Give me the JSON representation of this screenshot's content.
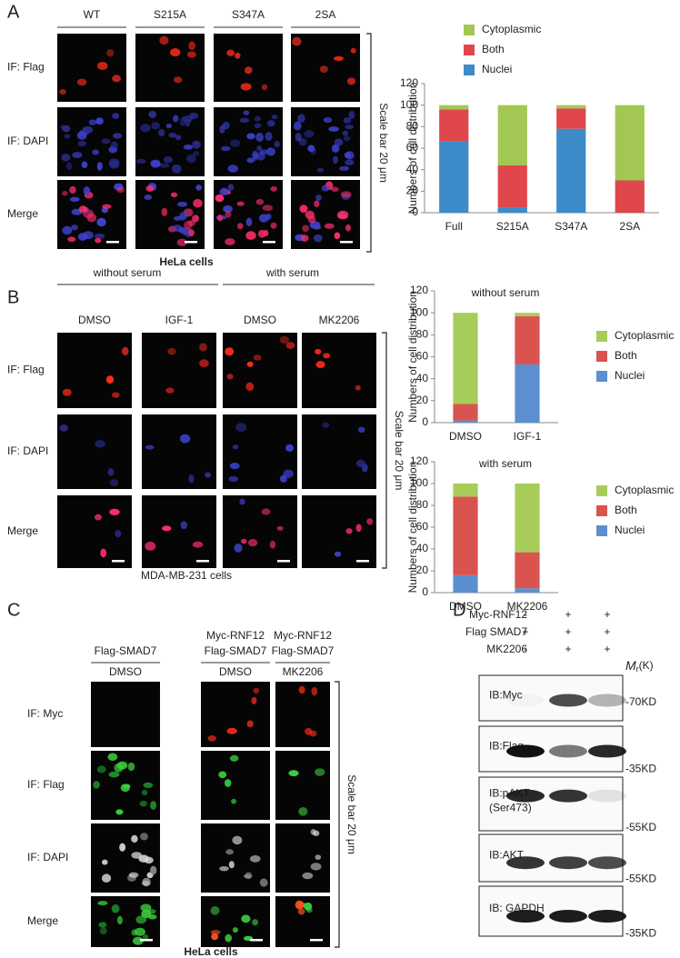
{
  "panels": {
    "A": {
      "label": "A",
      "columns": [
        "WT",
        "S215A",
        "S347A",
        "2SA"
      ],
      "rows": [
        "IF: Flag",
        "IF: DAPI",
        "Merge"
      ],
      "scale_bar": "Scale bar 20 μm",
      "cell_line": "HeLa cells"
    },
    "B": {
      "label": "B",
      "groups": [
        "without serum",
        "with serum"
      ],
      "columns": [
        "DMSO",
        "IGF-1",
        "DMSO",
        "MK2206"
      ],
      "rows": [
        "IF: Flag",
        "IF: DAPI",
        "Merge"
      ],
      "scale_bar": "Scale bar 20 μm",
      "cell_line": "MDA-MB-231 cells"
    },
    "C": {
      "label": "C",
      "columns": [
        {
          "constructs": [
            "Flag-SMAD7"
          ],
          "treatment": "DMSO"
        },
        {
          "constructs": [
            "Myc-RNF12",
            "Flag-SMAD7"
          ],
          "treatment": "DMSO"
        },
        {
          "constructs": [
            "Myc-RNF12",
            "Flag-SMAD7"
          ],
          "treatment": "MK2206"
        }
      ],
      "rows": [
        "IF: Myc",
        "IF: Flag",
        "IF: DAPI",
        "Merge"
      ],
      "scale_bar": "Scale bar 20 μm",
      "cell_line": "HeLa cells"
    },
    "D": {
      "label": "D",
      "conditions": [
        {
          "name": "Myc-RNF12",
          "marks": [
            "-",
            "+",
            "+"
          ]
        },
        {
          "name": "Flag SMAD7",
          "marks": [
            "+",
            "+",
            "+"
          ]
        },
        {
          "name": "MK2206",
          "marks": [
            "-",
            "+",
            "+"
          ]
        }
      ],
      "mr": "M",
      "mr_sub": "r",
      "mr_unit": "(K)",
      "blots": [
        {
          "label": [
            "IB:Myc"
          ],
          "marker": "-70KD"
        },
        {
          "label": [
            "IB:Flag"
          ],
          "marker": "-35KD"
        },
        {
          "label": [
            "IB:pAKT",
            "(Ser473)"
          ],
          "marker": "-55KD"
        },
        {
          "label": [
            "IB:AKT"
          ],
          "marker": "-55KD"
        },
        {
          "label": [
            "IB: GAPDH"
          ],
          "marker": "-35KD"
        }
      ]
    }
  },
  "chart_data": [
    {
      "type": "bar",
      "stacked": true,
      "y_label": "Numbers of cell distribution",
      "legend": "top",
      "categories": [
        "Full",
        "S215A",
        "S347A",
        "2SA"
      ],
      "series": [
        {
          "name": "Nuclei",
          "color": "#3d8bc9",
          "values": [
            66,
            5,
            78,
            0
          ]
        },
        {
          "name": "Both",
          "color": "#e0474c",
          "values": [
            30,
            39,
            19,
            30
          ]
        },
        {
          "name": "Cytoplasmic",
          "color": "#a2c853",
          "values": [
            4,
            56,
            3,
            70
          ]
        }
      ],
      "ylim": [
        0,
        120
      ],
      "yticks": [
        0,
        20,
        40,
        60,
        80,
        100,
        120
      ]
    },
    {
      "type": "bar",
      "stacked": true,
      "title": "without serum",
      "y_label": "Numbers of cell distribution",
      "legend": "right",
      "categories": [
        "DMSO",
        "IGF-1"
      ],
      "series": [
        {
          "name": "Nuclei",
          "color": "#5b8fd0",
          "values": [
            2,
            53
          ]
        },
        {
          "name": "Both",
          "color": "#d9534f",
          "values": [
            15,
            44
          ]
        },
        {
          "name": "Cytoplasmic",
          "color": "#a8cc5a",
          "values": [
            83,
            3
          ]
        }
      ],
      "ylim": [
        0,
        120
      ],
      "yticks": [
        0,
        20,
        40,
        60,
        80,
        100,
        120
      ]
    },
    {
      "type": "bar",
      "stacked": true,
      "title": "with serum",
      "y_label": "Numbers of cell distribution",
      "legend": "right",
      "categories": [
        "DMSO",
        "MK2206"
      ],
      "series": [
        {
          "name": "Nuclei",
          "color": "#5b8fd0",
          "values": [
            16,
            4
          ]
        },
        {
          "name": "Both",
          "color": "#d9534f",
          "values": [
            72,
            33
          ]
        },
        {
          "name": "Cytoplasmic",
          "color": "#a8cc5a",
          "values": [
            12,
            63
          ]
        }
      ],
      "ylim": [
        0,
        120
      ],
      "yticks": [
        0,
        20,
        40,
        60,
        80,
        100,
        120
      ]
    }
  ]
}
